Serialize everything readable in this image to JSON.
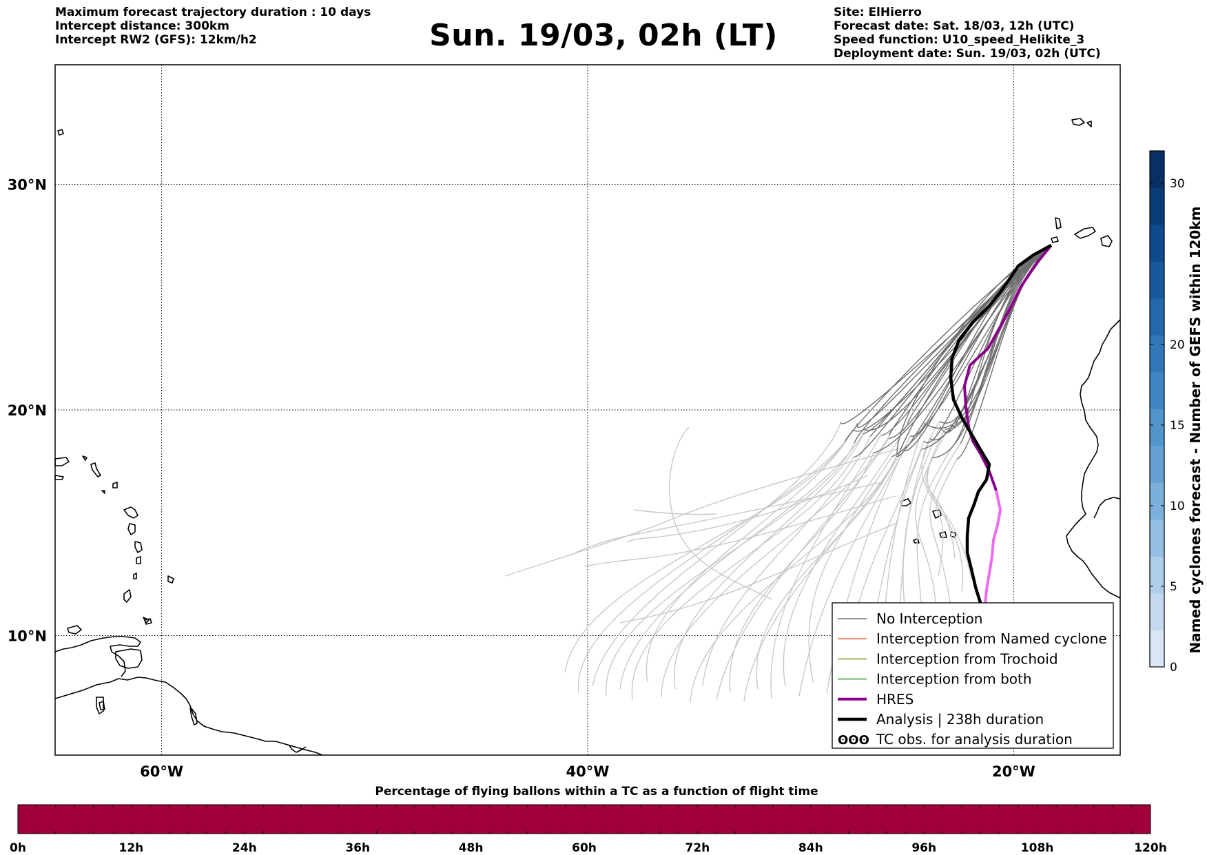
{
  "header": {
    "left_lines": [
      "Maximum forecast trajectory duration : 10 days",
      "Intercept distance: 300km",
      "Intercept RW2 (GFS):  12km/h2"
    ],
    "title": "Sun. 19/03, 02h (LT)",
    "right_lines": [
      "Site: ElHierro",
      "Forecast date: Sat. 18/03, 12h (UTC)",
      "Speed function: U10_speed_Helikite_3",
      "Deployment date: Sun. 19/03, 02h (UTC)"
    ]
  },
  "map": {
    "lat_labels": [
      "30°N",
      "20°N",
      "10°N"
    ],
    "lon_labels": [
      "60°W",
      "40°W",
      "20°W"
    ],
    "lat_values": [
      30,
      20,
      10
    ],
    "lon_values": [
      -60,
      -40,
      -20
    ],
    "extent": {
      "lon_min": -65,
      "lon_max": -15,
      "lat_min": 4.7,
      "lat_max": 35.3
    },
    "site": {
      "name": "ElHierro",
      "lon": -17.9,
      "lat": 27.7
    },
    "colors": {
      "no_interception": "#6e6e6e",
      "no_interception_light": "#c8c8c8",
      "named_cyclone": "#e8501a",
      "trochoid": "#808000",
      "both": "#1a8a1a",
      "hres": "#8b008b",
      "hres_late": "#ee6aee",
      "analysis": "#000000",
      "coast": "#000000"
    }
  },
  "legend": {
    "items": [
      {
        "label": "No Interception",
        "style": "no_interception"
      },
      {
        "label": "Interception from Named cyclone",
        "style": "named_cyclone"
      },
      {
        "label": "Interception from Trochoid",
        "style": "trochoid"
      },
      {
        "label": "Interception from both",
        "style": "both"
      },
      {
        "label": "HRES",
        "style": "hres"
      },
      {
        "label": "Analysis | 238h duration",
        "style": "analysis"
      },
      {
        "label": "TC obs. for analysis duration",
        "style": "tc_obs"
      }
    ],
    "tc_symbol": "ʘʘʘ"
  },
  "colorbar": {
    "label": "Named cyclones forecast - Number of GEFS within 120km",
    "ticks": [
      "0",
      "5",
      "10",
      "15",
      "20",
      "30"
    ],
    "tick_values": [
      0,
      5,
      10,
      15,
      20,
      30
    ],
    "max": 32,
    "colors": [
      "#d8e6f5",
      "#c4d9ef",
      "#aecde9",
      "#95bfe2",
      "#7bb0da",
      "#65a2d3",
      "#5195cb",
      "#3f87c2",
      "#3078b8",
      "#2368ac",
      "#18599e",
      "#0f4a8c",
      "#0a3c78",
      "#083064"
    ]
  },
  "time_bar": {
    "title": "Percentage of flying ballons within a TC as a function of flight time",
    "color": "#a0003c",
    "percentage": 0,
    "tick_labels": [
      "0h",
      "12h",
      "24h",
      "36h",
      "48h",
      "60h",
      "72h",
      "84h",
      "96h",
      "108h",
      "120h"
    ]
  }
}
